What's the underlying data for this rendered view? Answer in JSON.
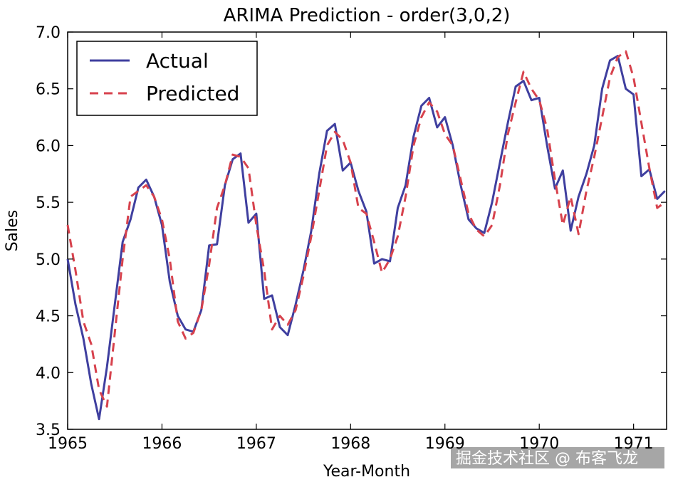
{
  "chart_data": {
    "type": "line",
    "title": "ARIMA Prediction - order(3,0,2)",
    "xlabel": "Year-Month",
    "ylabel": "Sales",
    "xlim": [
      1965.0,
      1971.35
    ],
    "ylim": [
      3.5,
      7.0
    ],
    "x_ticks": [
      1965,
      1966,
      1967,
      1968,
      1969,
      1970,
      1971
    ],
    "x_tick_labels": [
      "1965",
      "1966",
      "1967",
      "1968",
      "1969",
      "1970",
      "1971"
    ],
    "y_ticks": [
      3.5,
      4.0,
      4.5,
      5.0,
      5.5,
      6.0,
      6.5,
      7.0
    ],
    "y_tick_labels": [
      "3.5",
      "4.0",
      "4.5",
      "5.0",
      "5.5",
      "6.0",
      "6.5",
      "7.0"
    ],
    "grid": false,
    "legend_position": "top-left",
    "series": [
      {
        "name": "Actual",
        "color": "#3f3f9f",
        "style": "solid",
        "x": [
          1965.0,
          1965.083,
          1965.167,
          1965.25,
          1965.333,
          1965.417,
          1965.5,
          1965.583,
          1965.667,
          1965.75,
          1965.833,
          1965.917,
          1966.0,
          1966.083,
          1966.167,
          1966.25,
          1966.333,
          1966.417,
          1966.5,
          1966.583,
          1966.667,
          1966.75,
          1966.833,
          1966.917,
          1967.0,
          1967.083,
          1967.167,
          1967.25,
          1967.333,
          1967.417,
          1967.5,
          1967.583,
          1967.667,
          1967.75,
          1967.833,
          1967.917,
          1968.0,
          1968.083,
          1968.167,
          1968.25,
          1968.333,
          1968.417,
          1968.5,
          1968.583,
          1968.667,
          1968.75,
          1968.833,
          1968.917,
          1969.0,
          1969.083,
          1969.167,
          1969.25,
          1969.333,
          1969.417,
          1969.5,
          1969.583,
          1969.667,
          1969.75,
          1969.833,
          1969.917,
          1970.0,
          1970.083,
          1970.167,
          1970.25,
          1970.333,
          1970.417,
          1970.5,
          1970.583,
          1970.667,
          1970.75,
          1970.833,
          1970.917,
          1971.0,
          1971.083,
          1971.167,
          1971.25,
          1971.333
        ],
        "values": [
          5.0,
          4.6,
          4.3,
          3.9,
          3.59,
          4.05,
          4.6,
          5.15,
          5.35,
          5.63,
          5.7,
          5.55,
          5.3,
          4.8,
          4.5,
          4.38,
          4.36,
          4.55,
          5.12,
          5.13,
          5.65,
          5.88,
          5.93,
          5.32,
          5.4,
          4.65,
          4.68,
          4.4,
          4.33,
          4.6,
          4.9,
          5.25,
          5.75,
          6.13,
          6.19,
          5.78,
          5.85,
          5.6,
          5.42,
          4.96,
          5.0,
          4.98,
          5.45,
          5.65,
          6.08,
          6.35,
          6.42,
          6.16,
          6.25,
          6.0,
          5.65,
          5.35,
          5.27,
          5.23,
          5.5,
          5.85,
          6.2,
          6.52,
          6.57,
          6.4,
          6.42,
          6.0,
          5.62,
          5.78,
          5.25,
          5.55,
          5.75,
          6.0,
          6.5,
          6.75,
          6.79,
          6.5,
          6.45,
          5.73,
          5.79,
          5.53,
          5.6
        ]
      },
      {
        "name": "Predicted",
        "color": "#d7424d",
        "style": "dashed",
        "x": [
          1965.0,
          1965.083,
          1965.167,
          1965.25,
          1965.333,
          1965.417,
          1965.5,
          1965.583,
          1965.667,
          1965.75,
          1965.833,
          1965.917,
          1966.0,
          1966.083,
          1966.167,
          1966.25,
          1966.333,
          1966.417,
          1966.5,
          1966.583,
          1966.667,
          1966.75,
          1966.833,
          1966.917,
          1967.0,
          1967.083,
          1967.167,
          1967.25,
          1967.333,
          1967.417,
          1967.5,
          1967.583,
          1967.667,
          1967.75,
          1967.833,
          1967.917,
          1968.0,
          1968.083,
          1968.167,
          1968.25,
          1968.333,
          1968.417,
          1968.5,
          1968.583,
          1968.667,
          1968.75,
          1968.833,
          1968.917,
          1969.0,
          1969.083,
          1969.167,
          1969.25,
          1969.333,
          1969.417,
          1969.5,
          1969.583,
          1969.667,
          1969.75,
          1969.833,
          1969.917,
          1970.0,
          1970.083,
          1970.167,
          1970.25,
          1970.333,
          1970.417,
          1970.5,
          1970.583,
          1970.667,
          1970.75,
          1970.833,
          1970.917,
          1971.0,
          1971.083,
          1971.167,
          1971.25,
          1971.333
        ],
        "values": [
          5.3,
          4.9,
          4.45,
          4.25,
          3.85,
          3.7,
          4.35,
          5.0,
          5.55,
          5.6,
          5.65,
          5.55,
          5.35,
          5.0,
          4.45,
          4.3,
          4.35,
          4.55,
          4.95,
          5.45,
          5.65,
          5.92,
          5.9,
          5.8,
          5.3,
          4.9,
          4.38,
          4.5,
          4.42,
          4.55,
          4.85,
          5.2,
          5.6,
          6.0,
          6.12,
          6.05,
          5.85,
          5.45,
          5.4,
          5.15,
          4.88,
          5.0,
          5.2,
          5.55,
          6.0,
          6.25,
          6.38,
          6.3,
          6.1,
          6.0,
          5.7,
          5.4,
          5.26,
          5.2,
          5.3,
          5.65,
          6.1,
          6.38,
          6.65,
          6.5,
          6.4,
          6.15,
          5.7,
          5.3,
          5.55,
          5.22,
          5.6,
          5.9,
          6.25,
          6.6,
          6.78,
          6.83,
          6.6,
          6.2,
          5.8,
          5.45,
          5.5
        ]
      }
    ]
  },
  "watermark": "掘金技术社区 @ 布客飞龙"
}
